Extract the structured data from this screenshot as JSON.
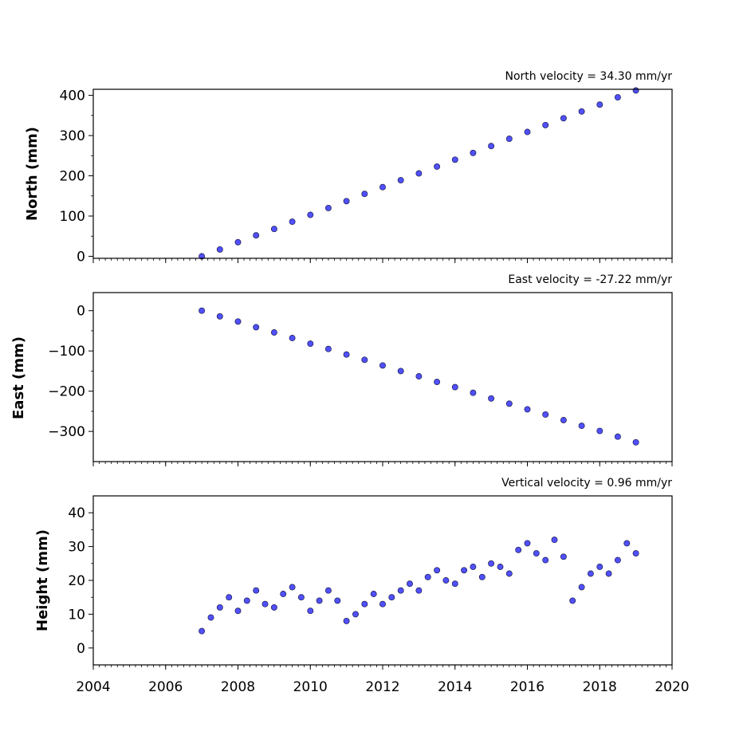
{
  "chart_data": [
    {
      "type": "scatter",
      "title": "",
      "annotation": "North velocity = 34.30 mm/yr",
      "xlabel": "",
      "ylabel": "North (mm)",
      "xlim": [
        2004,
        2020
      ],
      "ylim": [
        -5,
        415
      ],
      "yticks": [
        0,
        100,
        200,
        300,
        400
      ],
      "yticklabels": [
        "0",
        "100",
        "200",
        "300",
        "400"
      ],
      "xticks": [
        2004,
        2006,
        2008,
        2010,
        2012,
        2014,
        2016,
        2018,
        2020
      ],
      "xticklabels": [
        "",
        "",
        "",
        "",
        "",
        "",
        "",
        "",
        ""
      ],
      "marker_face": "#5050ff",
      "marker_edge": "#1a1a4a",
      "series": [
        {
          "x": [
            2007.0,
            2007.5,
            2008.0,
            2008.5,
            2009.0,
            2009.5,
            2010.0,
            2010.5,
            2011.0,
            2011.5,
            2012.0,
            2012.5,
            2013.0,
            2013.5,
            2014.0,
            2014.5,
            2015.0,
            2015.5,
            2016.0,
            2016.5,
            2017.0,
            2017.5,
            2018.0,
            2018.5,
            2019.0
          ],
          "y": [
            0,
            17,
            35,
            52,
            68,
            86,
            103,
            120,
            137,
            155,
            172,
            189,
            206,
            223,
            240,
            257,
            274,
            292,
            309,
            326,
            343,
            360,
            377,
            395,
            412
          ]
        }
      ]
    },
    {
      "type": "scatter",
      "title": "",
      "annotation": "East velocity = -27.22 mm/yr",
      "xlabel": "",
      "ylabel": "East (mm)",
      "xlim": [
        2004,
        2020
      ],
      "ylim": [
        -375,
        45
      ],
      "yticks": [
        0,
        -100,
        -200,
        -300
      ],
      "yticklabels": [
        "0",
        "−100",
        "−200",
        "−300"
      ],
      "xticks": [
        2004,
        2006,
        2008,
        2010,
        2012,
        2014,
        2016,
        2018,
        2020
      ],
      "xticklabels": [
        "",
        "",
        "",
        "",
        "",
        "",
        "",
        "",
        ""
      ],
      "marker_face": "#5050ff",
      "marker_edge": "#1a1a4a",
      "series": [
        {
          "x": [
            2007.0,
            2007.5,
            2008.0,
            2008.5,
            2009.0,
            2009.5,
            2010.0,
            2010.5,
            2011.0,
            2011.5,
            2012.0,
            2012.5,
            2013.0,
            2013.5,
            2014.0,
            2014.5,
            2015.0,
            2015.5,
            2016.0,
            2016.5,
            2017.0,
            2017.5,
            2018.0,
            2018.5,
            2019.0
          ],
          "y": [
            0,
            -14,
            -27,
            -41,
            -54,
            -68,
            -82,
            -95,
            -109,
            -122,
            -136,
            -150,
            -163,
            -177,
            -190,
            -204,
            -218,
            -231,
            -245,
            -258,
            -272,
            -286,
            -299,
            -313,
            -327
          ]
        }
      ]
    },
    {
      "type": "scatter",
      "title": "",
      "annotation": "Vertical velocity = 0.96 mm/yr",
      "xlabel": "",
      "ylabel": "Height (mm)",
      "xlim": [
        2004,
        2020
      ],
      "ylim": [
        -5,
        45
      ],
      "yticks": [
        0,
        10,
        20,
        30,
        40
      ],
      "yticklabels": [
        "0",
        "10",
        "20",
        "30",
        "40"
      ],
      "xticks": [
        2004,
        2006,
        2008,
        2010,
        2012,
        2014,
        2016,
        2018,
        2020
      ],
      "xticklabels": [
        "2004",
        "2006",
        "2008",
        "2010",
        "2012",
        "2014",
        "2016",
        "2018",
        "2020"
      ],
      "marker_face": "#5050ff",
      "marker_edge": "#1a1a4a",
      "series": [
        {
          "x": [
            2007.0,
            2007.25,
            2007.5,
            2007.75,
            2008.0,
            2008.25,
            2008.5,
            2008.75,
            2009.0,
            2009.25,
            2009.5,
            2009.75,
            2010.0,
            2010.25,
            2010.5,
            2010.75,
            2011.0,
            2011.25,
            2011.5,
            2011.75,
            2012.0,
            2012.25,
            2012.5,
            2012.75,
            2013.0,
            2013.25,
            2013.5,
            2013.75,
            2014.0,
            2014.25,
            2014.5,
            2014.75,
            2015.0,
            2015.25,
            2015.5,
            2015.75,
            2016.0,
            2016.25,
            2016.5,
            2016.75,
            2017.0,
            2017.25,
            2017.5,
            2017.75,
            2018.0,
            2018.25,
            2018.5,
            2018.75,
            2019.0
          ],
          "y": [
            5,
            9,
            12,
            15,
            11,
            14,
            17,
            13,
            12,
            16,
            18,
            15,
            11,
            14,
            17,
            14,
            8,
            10,
            13,
            16,
            13,
            15,
            17,
            19,
            17,
            21,
            23,
            20,
            19,
            23,
            24,
            21,
            25,
            24,
            22,
            29,
            31,
            28,
            26,
            32,
            27,
            14,
            18,
            22,
            24,
            22,
            26,
            31,
            28
          ]
        }
      ]
    }
  ]
}
